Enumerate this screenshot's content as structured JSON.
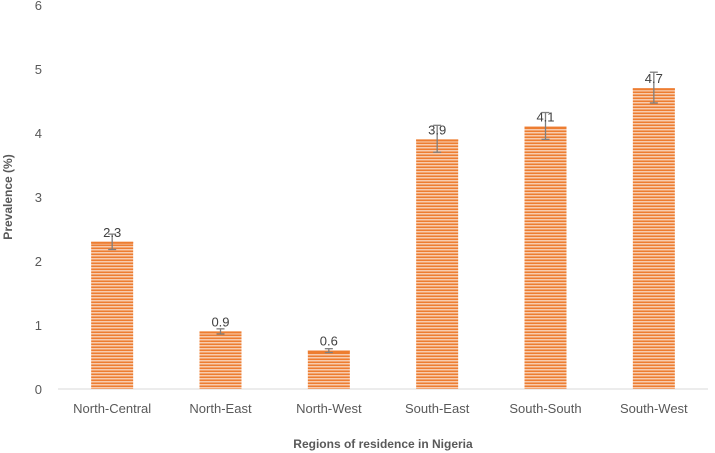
{
  "chart_data": {
    "type": "bar",
    "title": "",
    "xlabel": "Regions of residence in Nigeria",
    "ylabel": "Prevalence (%)",
    "ylim": [
      0,
      6
    ],
    "yticks": [
      0,
      1,
      2,
      3,
      4,
      5,
      6
    ],
    "categories": [
      "North-Central",
      "North-East",
      "North-West",
      "South-East",
      "South-South",
      "South-West"
    ],
    "values": [
      2.3,
      0.9,
      0.6,
      3.9,
      4.1,
      4.7
    ],
    "error_bars": [
      [
        2.18,
        2.42
      ],
      [
        0.86,
        0.94
      ],
      [
        0.57,
        0.63
      ],
      [
        3.7,
        4.12
      ],
      [
        3.9,
        4.32
      ],
      [
        4.47,
        4.95
      ]
    ],
    "grid": false,
    "legend": "none",
    "bar_color": "#ED7D31",
    "bar_stripe_color": "#F8CBAD",
    "error_bar_color": "#7F7F7F"
  }
}
